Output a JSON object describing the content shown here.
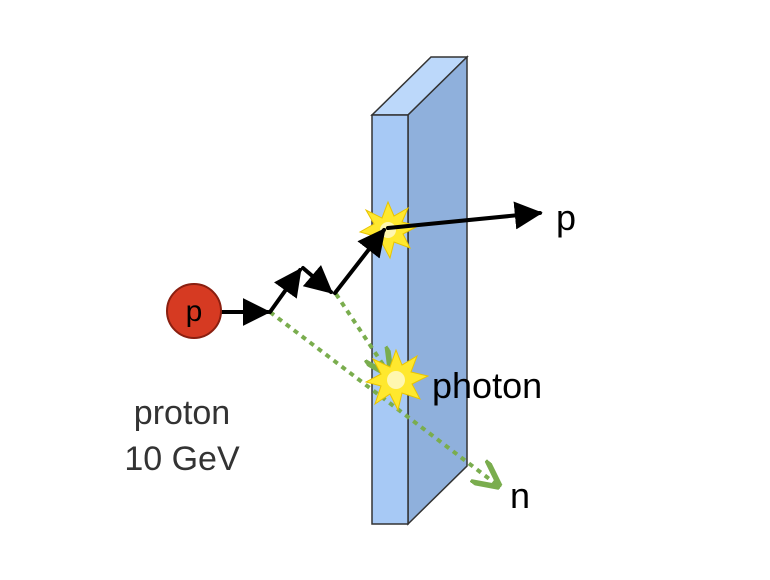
{
  "proton_circle": {
    "label": "p",
    "fill": "#d63a22",
    "stroke": "#8a1f10"
  },
  "incoming_label": {
    "line1": "proton",
    "line2": "10 GeV"
  },
  "outgoing_labels": {
    "proton": "p",
    "photon": "photon",
    "neutron": "n"
  },
  "plate": {
    "front_fill": "#a7c9f5",
    "side_fill": "#8fb0dc",
    "top_fill": "#bcd8fa",
    "stroke": "#333333"
  },
  "colors": {
    "track": "#000000",
    "neutral_track": "#7aad4e",
    "flash_outer": "#ffe82e",
    "flash_inner": "#fff7b0"
  }
}
